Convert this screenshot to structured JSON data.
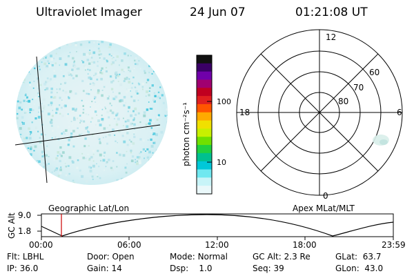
{
  "header": {
    "instrument": "Ultraviolet Imager",
    "date": "24 Jun 07",
    "time": "01:21:08 UT"
  },
  "colorbar": {
    "unit": "photon cm⁻²s⁻¹",
    "ticks": [
      "100",
      "10"
    ],
    "colors": [
      "#111111",
      "#3a0066",
      "#7000aa",
      "#a00070",
      "#c00020",
      "#e02020",
      "#ff5500",
      "#ffaa00",
      "#f0e000",
      "#c8f000",
      "#70e000",
      "#20d040",
      "#00c090",
      "#00c8d8",
      "#70e8f0",
      "#c8f4f8",
      "#eaf8fa"
    ]
  },
  "polar_plot": {
    "hour_labels": {
      "top": "12",
      "left": "18",
      "right": "6",
      "bottom": "0"
    },
    "lat_labels": [
      "80",
      "70",
      "60"
    ]
  },
  "timeline": {
    "left_title": "Geographic Lat/Lon",
    "right_title": "Apex MLat/MLT",
    "axis_label": "GC Alt",
    "y_ticks": [
      "9.0",
      "1.8"
    ],
    "x_ticks": [
      "00:00",
      "06:00",
      "12:00",
      "18:00",
      "23:59"
    ],
    "marker_color": "#cc0000"
  },
  "status": {
    "row1": [
      {
        "key": "Flt:",
        "value": "LBHL"
      },
      {
        "key": "Door:",
        "value": "Open"
      },
      {
        "key": "Mode:",
        "value": "Normal"
      },
      {
        "key": "GC Alt:",
        "value": "2.3 Re"
      },
      {
        "key": "GLat:",
        "value": "63.7"
      }
    ],
    "row2": [
      {
        "key": "IP:",
        "value": "36.0"
      },
      {
        "key": "Gain:",
        "value": "14"
      },
      {
        "key": "Dsp:",
        "value": "1.0"
      },
      {
        "key": "Seq:",
        "value": "39"
      },
      {
        "key": "GLon:",
        "value": "43.0"
      }
    ]
  }
}
